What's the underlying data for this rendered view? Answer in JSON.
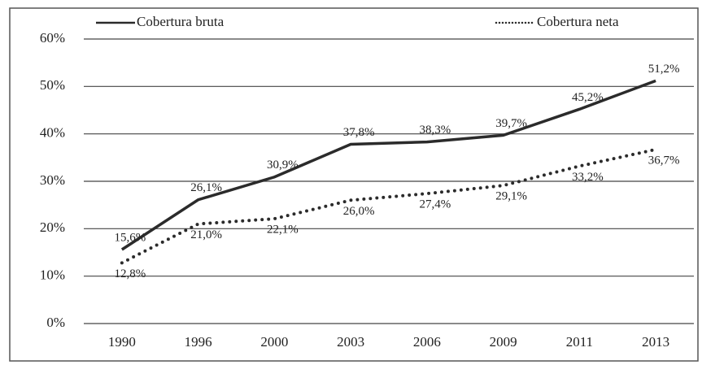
{
  "chart_data": {
    "type": "line",
    "categories": [
      "1990",
      "1996",
      "2000",
      "2003",
      "2006",
      "2009",
      "2011",
      "2013"
    ],
    "series": [
      {
        "name": "Cobertura bruta",
        "color": "#2b2b2b",
        "style": "solid",
        "values": [
          15.6,
          26.1,
          30.9,
          37.8,
          38.3,
          39.7,
          45.2,
          51.2
        ],
        "value_labels": [
          "15,6%",
          "26,1%",
          "30,9%",
          "37,8%",
          "38,3%",
          "39,7%",
          "45,2%",
          "51,2%"
        ]
      },
      {
        "name": "Cobertura neta",
        "color": "#2b2b2b",
        "style": "dotted",
        "values": [
          12.8,
          21.0,
          22.1,
          26.0,
          27.4,
          29.1,
          33.2,
          36.7
        ],
        "value_labels": [
          "12,8%",
          "21,0%",
          "22,1%",
          "26,0%",
          "27,4%",
          "29,1%",
          "33,2%",
          "36,7%"
        ]
      }
    ],
    "ylim": [
      0,
      60
    ],
    "yticks": [
      {
        "value": 0,
        "label": "0%"
      },
      {
        "value": 10,
        "label": "10%"
      },
      {
        "value": 20,
        "label": "20%"
      },
      {
        "value": 30,
        "label": "30%"
      },
      {
        "value": 40,
        "label": "40%"
      },
      {
        "value": 50,
        "label": "50%"
      },
      {
        "value": 60,
        "label": "60%"
      }
    ],
    "grid": true
  }
}
